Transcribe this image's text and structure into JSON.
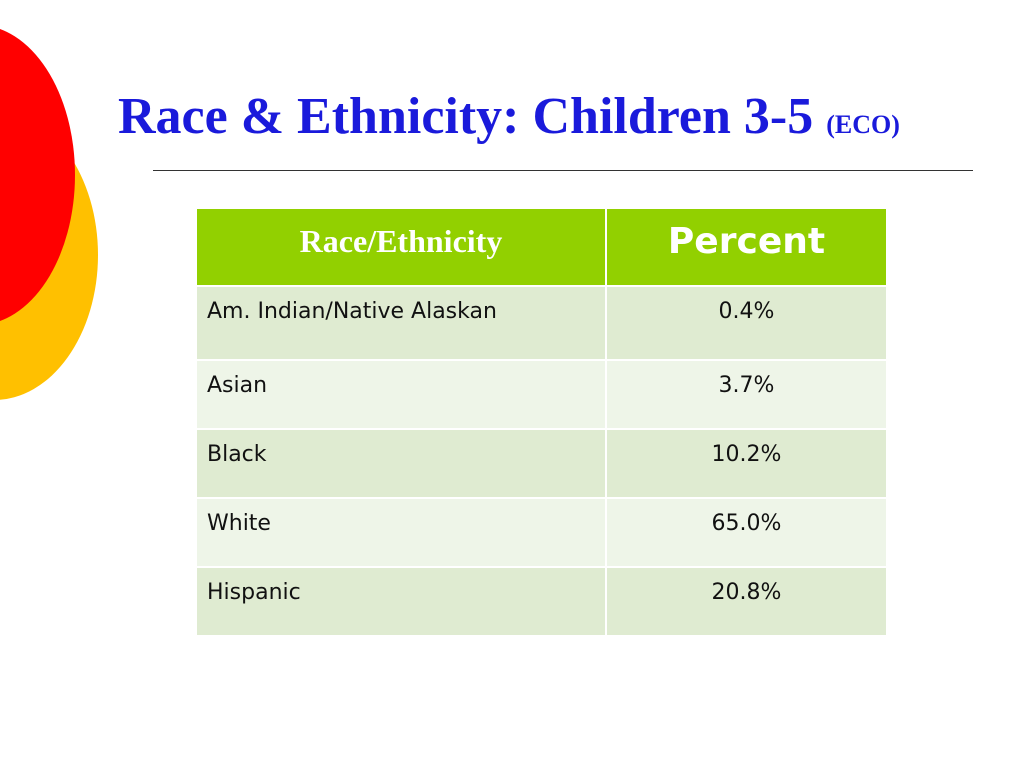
{
  "slide": {
    "title_main": "Race & Ethnicity: Children 3-5 ",
    "title_small": "(ECO)"
  },
  "table": {
    "headers": [
      "Race/Ethnicity",
      "Percent"
    ],
    "rows": [
      {
        "label": "Am. Indian/Native Alaskan",
        "value": "0.4%"
      },
      {
        "label": "Asian",
        "value": "3.7%"
      },
      {
        "label": "Black",
        "value": "10.2%"
      },
      {
        "label": "White",
        "value": "65.0%"
      },
      {
        "label": "Hispanic",
        "value": "20.8%"
      }
    ]
  },
  "colors": {
    "title": "#1a1adb",
    "header_bg": "#92d000",
    "row_odd": "#dfebd1",
    "row_even": "#eef5e8",
    "circle_red": "#ff0000",
    "circle_yellow": "#ffc000"
  }
}
